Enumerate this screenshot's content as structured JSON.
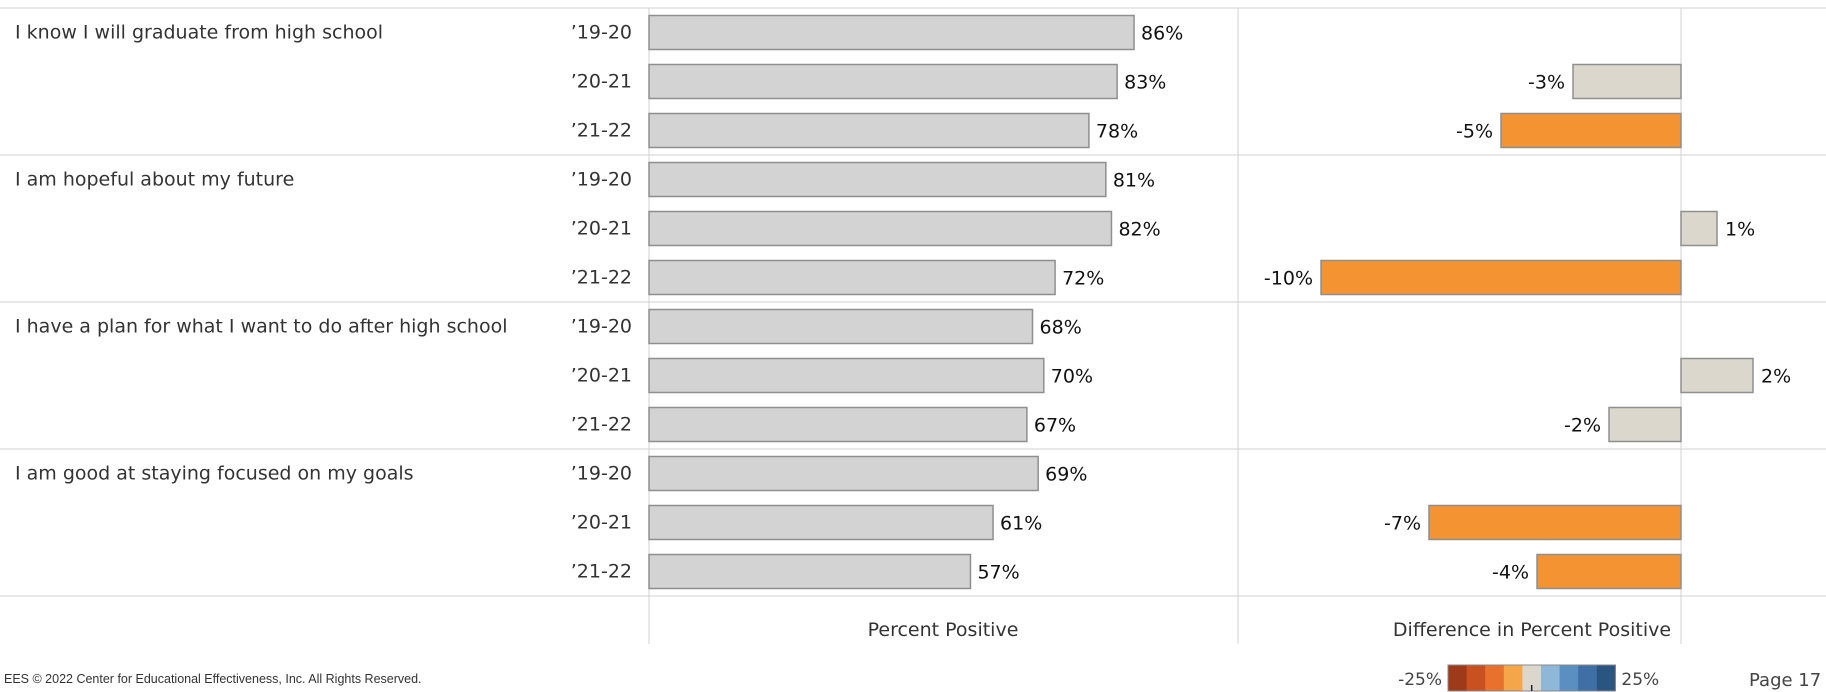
{
  "chart_data": {
    "type": "bar",
    "panels": [
      "Percent Positive",
      "Difference in Percent Positive"
    ],
    "years": [
      "’19-20",
      "’20-21",
      "’21-22"
    ],
    "groups": [
      {
        "statement": "I know I will graduate from high school",
        "percent_positive": [
          86,
          83,
          78
        ],
        "difference": [
          null,
          -3,
          -5
        ]
      },
      {
        "statement": "I am hopeful about my future",
        "percent_positive": [
          81,
          82,
          72
        ],
        "difference": [
          null,
          1,
          -10
        ]
      },
      {
        "statement": "I have a plan for what I want to do after high school",
        "percent_positive": [
          68,
          70,
          67
        ],
        "difference": [
          null,
          2,
          -2
        ]
      },
      {
        "statement": "I am good at staying focused on my goals",
        "percent_positive": [
          69,
          61,
          57
        ],
        "difference": [
          null,
          -7,
          -4
        ]
      }
    ],
    "value_suffix": "%",
    "percent_axis_range": [
      0,
      100
    ],
    "difference_axis_range": [
      -12,
      12
    ],
    "legend": {
      "min_label": "-25%",
      "max_label": "25%",
      "colors": [
        "#9e3a1a",
        "#c9501f",
        "#e8722d",
        "#f5a54a",
        "#dbd7cc",
        "#8fb8d8",
        "#5b8fc1",
        "#3f6fa5",
        "#2a5580"
      ]
    },
    "colors": {
      "percent_bar": "#d3d3d3",
      "bar_stroke": "#8f8f8f",
      "diff_neutral": "#dbd7cc",
      "diff_negative": "#f49332"
    }
  },
  "footer": {
    "copyright": "EES © 2022 Center for Educational Effectiveness, Inc. All Rights Reserved.",
    "page": "Page 17"
  }
}
